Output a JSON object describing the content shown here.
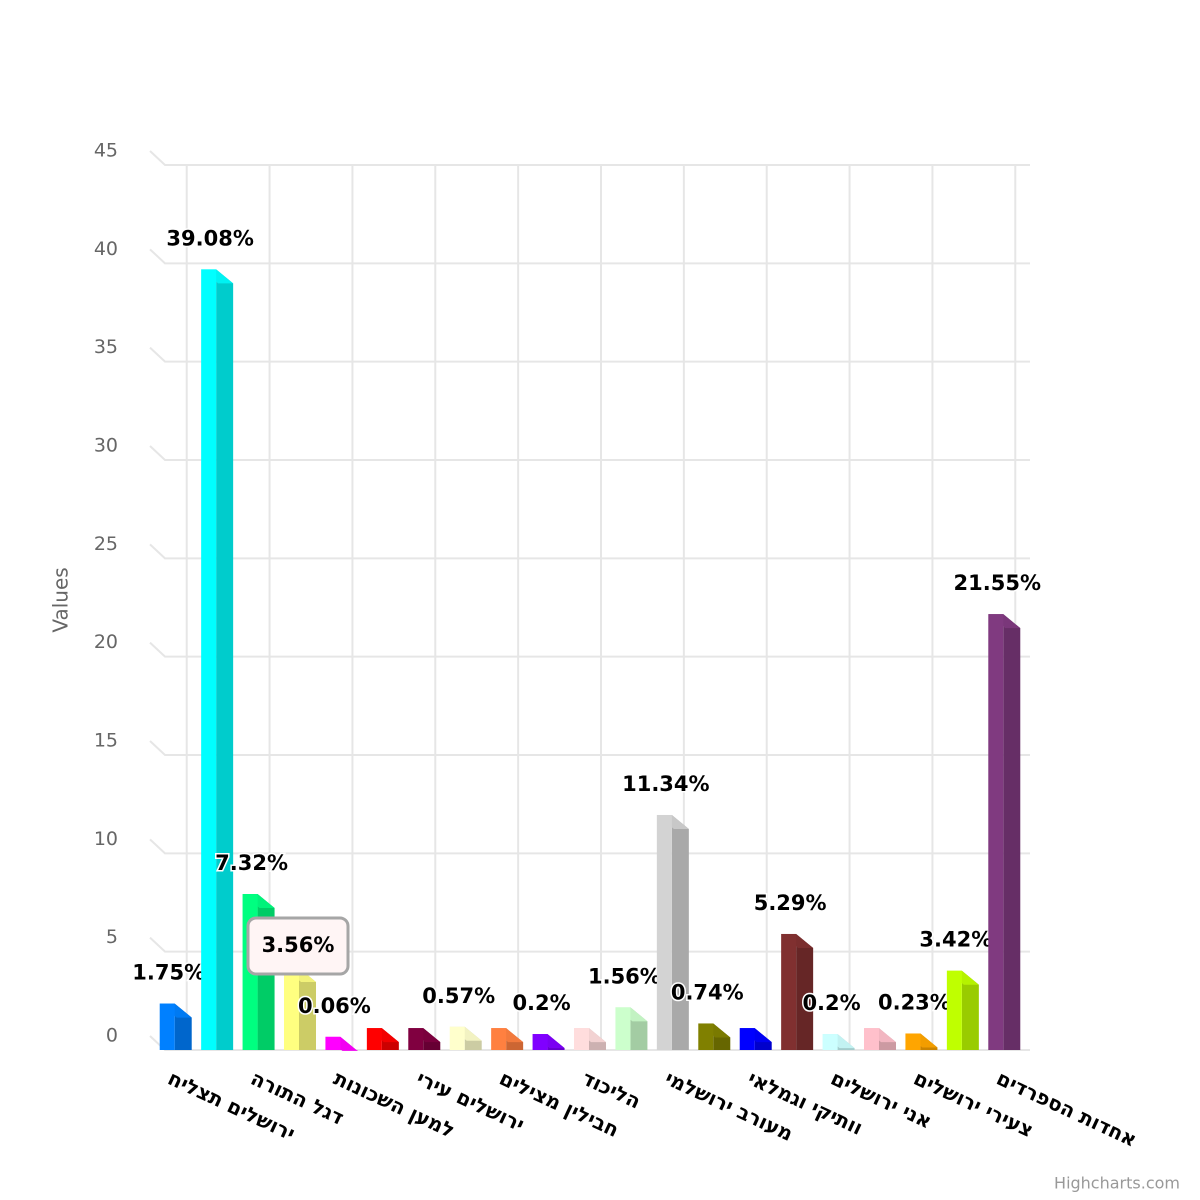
{
  "chart_data": {
    "type": "bar3d",
    "y_label": "Values",
    "categories": [
      "ירושלים תצליח",
      null,
      "דגל התורה",
      null,
      "למען השכונות",
      null,
      "ירושלים עירי",
      null,
      "חבילין מצילים",
      null,
      "הליכוד",
      null,
      "מעורב ירושלמי",
      null,
      "וותיקי וגמלאי",
      null,
      "אני ירושלים",
      null,
      "צעירי ירושלים",
      null,
      "אחדות הספרדים"
    ],
    "values": [
      1.75,
      39.08,
      7.32,
      3.56,
      0.06,
      0.5,
      0.5,
      0.57,
      0.5,
      0.2,
      0.5,
      1.56,
      11.34,
      0.74,
      0.5,
      5.29,
      0.2,
      0.5,
      0.23,
      3.42,
      21.55
    ],
    "value_labels": [
      "1.75%",
      "39.08%",
      "7.32%",
      null,
      "0.06%",
      null,
      null,
      "0.57%",
      null,
      "0.2%",
      null,
      "1.56%",
      "11.34%",
      "0.74%",
      null,
      "5.29%",
      "0.2%",
      null,
      "0.23%",
      "3.42%",
      "21.55%"
    ],
    "colors": [
      "#0080ff",
      "#00ffff",
      "#00ff80",
      "#ffff80",
      "#ff00ff",
      "#ff0000",
      "#800040",
      "#ffffcc",
      "#ff8040",
      "#8000ff",
      "#ffdddd",
      "#ccffcc",
      "#d3d3d3",
      "#808000",
      "#0000ff",
      "#803030",
      "#ccffff",
      "#ffc0cb",
      "#ffa500",
      "#bfff00",
      "#803a80"
    ],
    "tooltip": {
      "index": 3,
      "text": "3.56%"
    },
    "ylim": [
      0,
      45
    ],
    "yticks": [
      0,
      5,
      10,
      15,
      20,
      25,
      30,
      35,
      40,
      45
    ],
    "grid": true,
    "credits": "Highcharts.com"
  }
}
